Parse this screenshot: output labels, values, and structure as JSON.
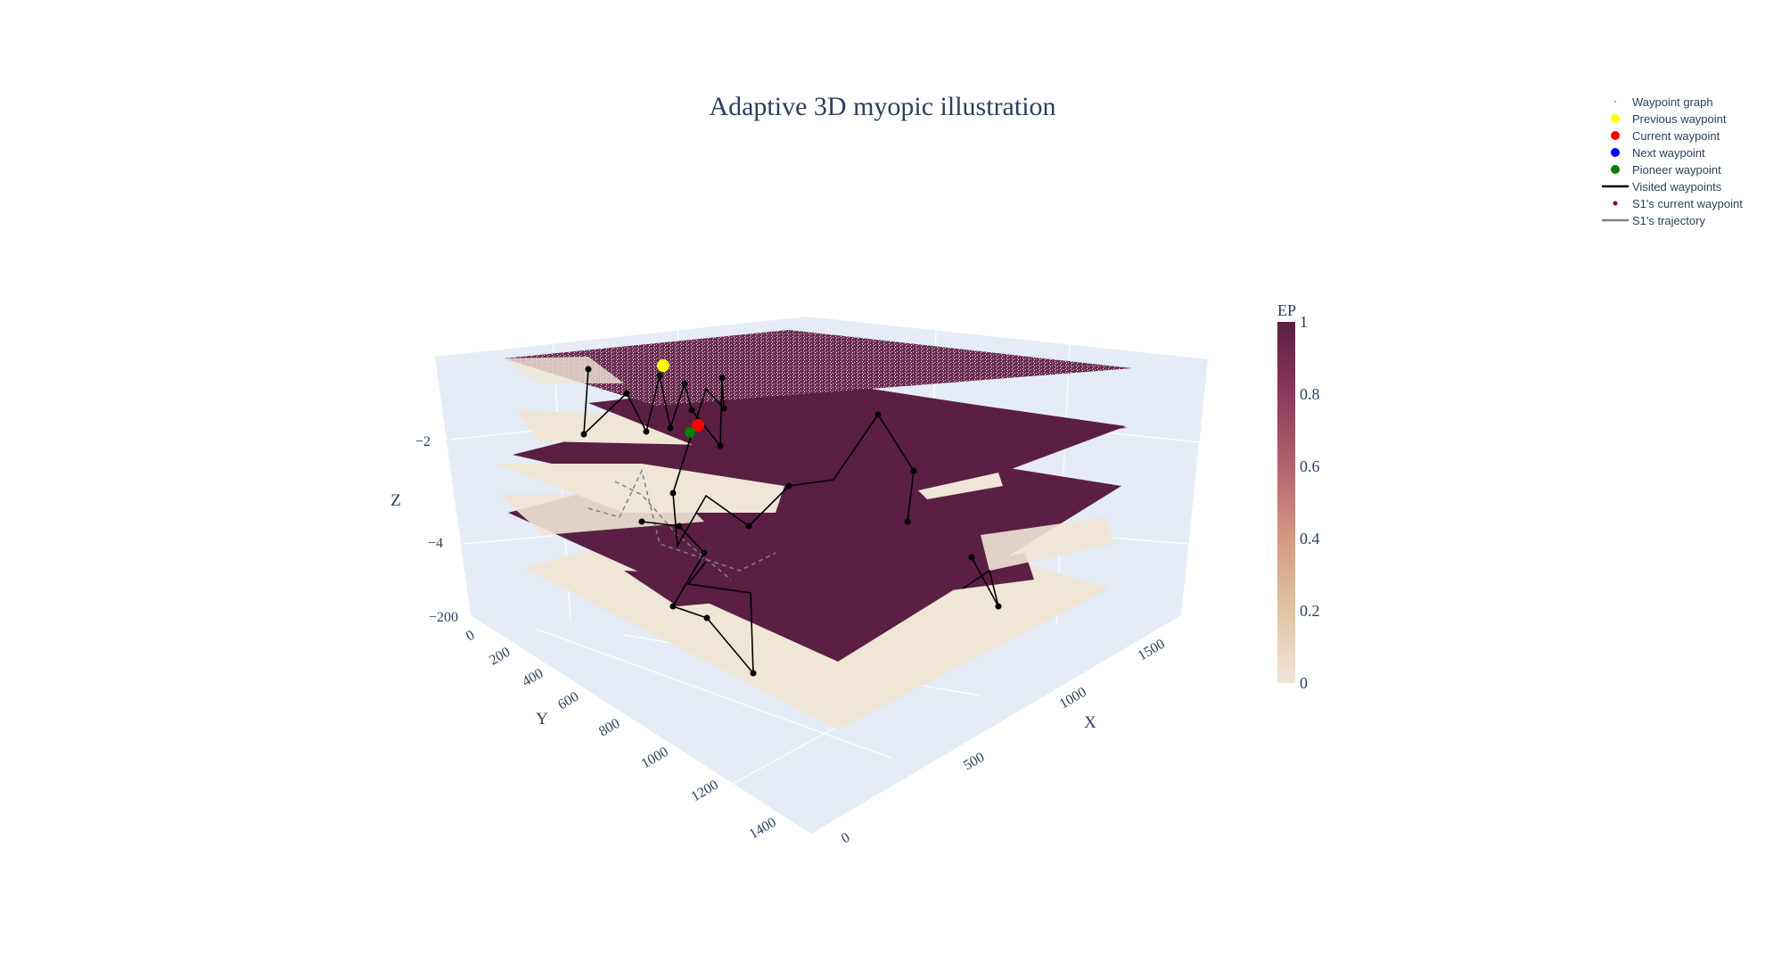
{
  "chart_data": {
    "type": "3d-surface-scatter",
    "title": "Adaptive 3D myopic illustration",
    "xlabel": "X",
    "ylabel": "Y",
    "zlabel": "Z",
    "x_ticks": [
      "0",
      "500",
      "1000",
      "1500"
    ],
    "y_ticks": [
      "0",
      "200",
      "400",
      "600",
      "800",
      "1000",
      "1200",
      "1400"
    ],
    "z_ticks": [
      "−2",
      "−4",
      "−200"
    ],
    "colorbar": {
      "title": "EP",
      "ticks": [
        "0",
        "0.2",
        "0.4",
        "0.6",
        "0.8",
        "1"
      ],
      "range": [
        0,
        1
      ],
      "colors": [
        "#efe6d6",
        "#e3c3a3",
        "#d29a82",
        "#b3646e",
        "#8a3a5c",
        "#5a1f43"
      ]
    },
    "legend_position": "top-right",
    "legend": [
      {
        "label": "Waypoint graph",
        "color": "#b0b0b0"
      },
      {
        "label": "Previous waypoint",
        "color": "#ffff00"
      },
      {
        "label": "Current waypoint",
        "color": "#ff0000"
      },
      {
        "label": "Next waypoint",
        "color": "#0000ff"
      },
      {
        "label": "Pioneer waypoint",
        "color": "#008000"
      },
      {
        "label": "Visited waypoints",
        "color": "#000000"
      },
      {
        "label": "S1's current waypoint",
        "color": "#8b0000"
      },
      {
        "label": "S1's trajectory",
        "color": "#808080"
      }
    ],
    "layers": [
      {
        "z_level": 1,
        "description_state": "mixed"
      },
      {
        "z_level": 2,
        "description_state": "high"
      },
      {
        "z_level": 3,
        "description_state": "high"
      },
      {
        "z_level": 4,
        "description_state": "low"
      }
    ],
    "grid": true
  }
}
